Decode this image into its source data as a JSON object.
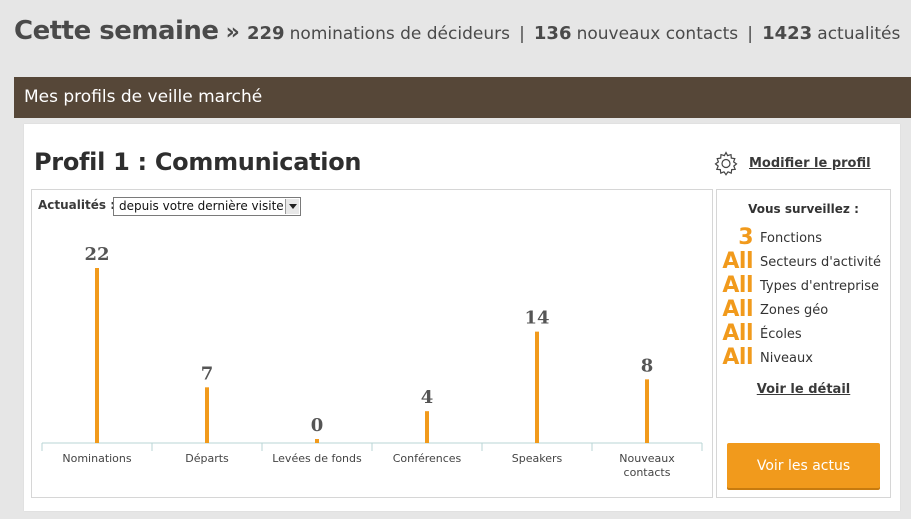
{
  "header": {
    "title": "Cette semaine",
    "separator": "»",
    "stats": [
      {
        "value": "229",
        "label": "nominations de décideurs"
      },
      {
        "value": "136",
        "label": "nouveaux contacts"
      },
      {
        "value": "1423",
        "label": "actualités"
      }
    ]
  },
  "section": {
    "title": "Mes profils de veille marché"
  },
  "profile": {
    "title": "Profil 1 : Communication",
    "modify_label": "Modifier le profil",
    "modify_icon": "gear-icon"
  },
  "filter": {
    "label": "Actualités :",
    "selected": "depuis votre dernière visite"
  },
  "chart_data": {
    "type": "bar",
    "categories": [
      "Nominations",
      "Départs",
      "Levées de fonds",
      "Conférences",
      "Speakers",
      "Nouveaux contacts"
    ],
    "values": [
      22,
      7,
      0,
      4,
      14,
      8
    ],
    "bar_color": "#f19a1c",
    "ylim": [
      0,
      22
    ]
  },
  "watch": {
    "title": "Vous surveillez :",
    "items": [
      {
        "value": "3",
        "label": "Fonctions"
      },
      {
        "value": "All",
        "label": "Secteurs d'activité"
      },
      {
        "value": "All",
        "label": "Types d'entreprise"
      },
      {
        "value": "All",
        "label": "Zones géo"
      },
      {
        "value": "All",
        "label": "Écoles"
      },
      {
        "value": "All",
        "label": "Niveaux"
      }
    ],
    "detail_link": "Voir le détail",
    "button_label": "Voir les actus"
  },
  "colors": {
    "accent": "#f19a1c",
    "section_bar": "#564738",
    "background": "#e6e6e6"
  }
}
